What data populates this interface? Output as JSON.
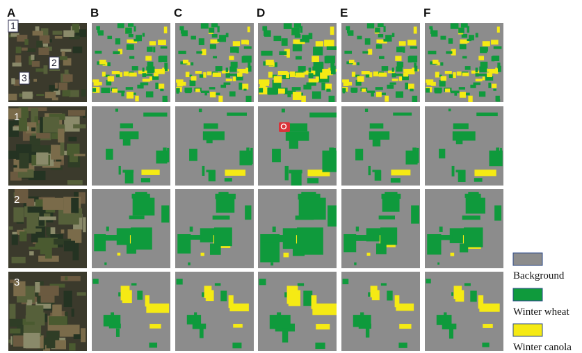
{
  "column_labels": [
    "A",
    "B",
    "C",
    "D",
    "E",
    "F"
  ],
  "row_labels": [
    "1",
    "2",
    "3"
  ],
  "overview_markers": [
    "1",
    "2",
    "3"
  ],
  "legend": [
    {
      "label": "Background",
      "color": "#8c8c8c"
    },
    {
      "label": "Winter wheat",
      "color": "#0f9a3c"
    },
    {
      "label": "Winter canola",
      "color": "#f5ea14"
    }
  ]
}
